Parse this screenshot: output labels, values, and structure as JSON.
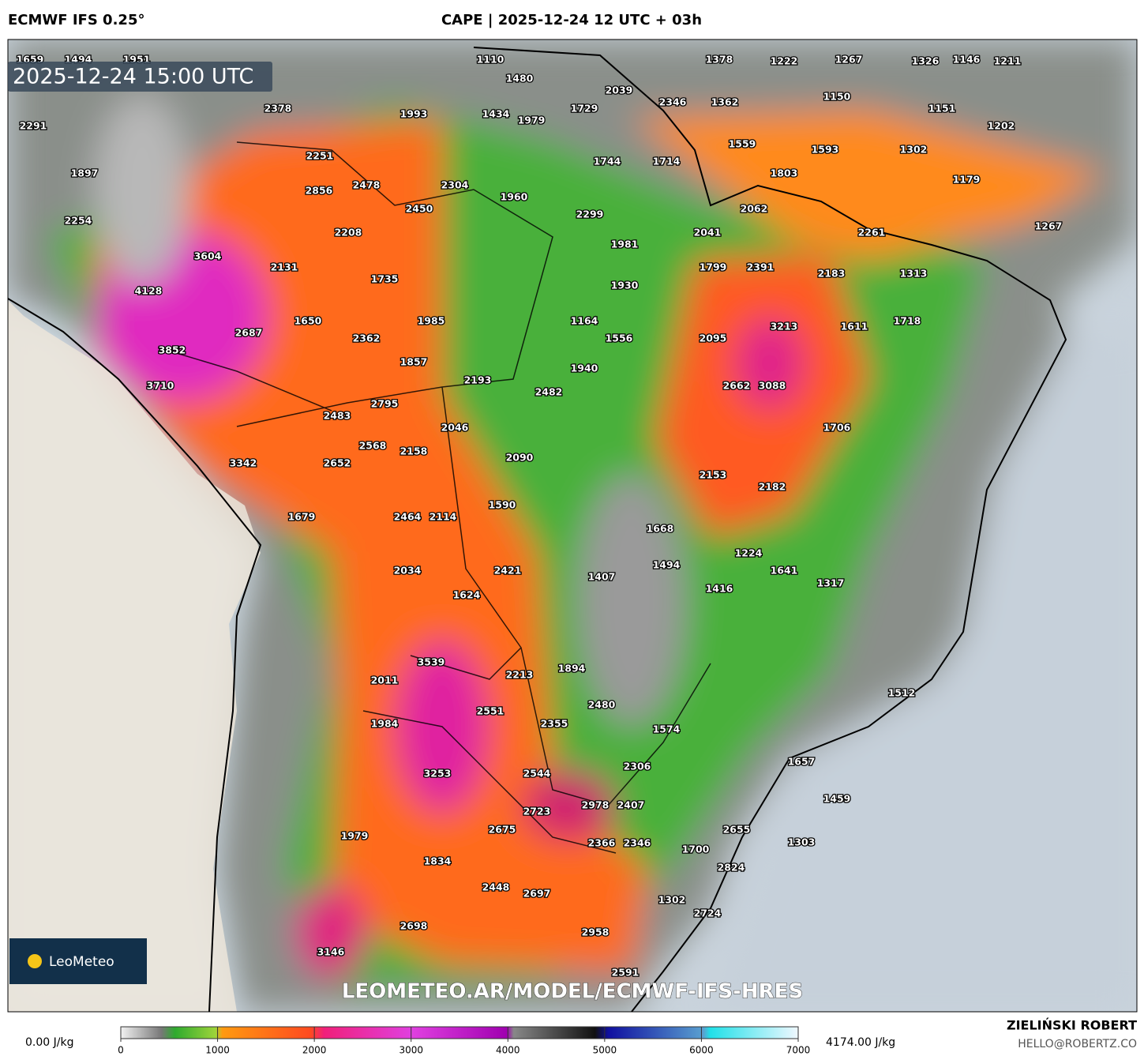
{
  "header": {
    "model": "ECMWF IFS 0.25°",
    "title": "CAPE | 2025-12-24 12 UTC + 03h"
  },
  "map": {
    "valid_time": "2025-12-24 15:00 UTC",
    "watermark": "LEOMETEO.AR/MODEL/ECMWF-IFS-HRES",
    "logo": "LeoMeteo",
    "labels": [
      1659,
      1494,
      1951,
      1110,
      1378,
      1222,
      1267,
      1326,
      1146,
      1211,
      1480,
      2039,
      2378,
      1993,
      1434,
      1979,
      1729,
      2346,
      1362,
      1150,
      1151,
      2291,
      1202,
      1559,
      1593,
      1302,
      2251,
      1744,
      1714,
      1803,
      1897,
      1179,
      2856,
      2478,
      2304,
      1960,
      2450,
      2062,
      2299,
      2254,
      2208,
      2041,
      2261,
      1267,
      1981,
      3604,
      2131,
      1799,
      2391,
      2183,
      1313,
      1735,
      1930,
      4128,
      1650,
      1985,
      1164,
      3213,
      1611,
      1718,
      2687,
      2362,
      1556,
      2095,
      3852,
      1857,
      1940,
      3710,
      2193,
      2482,
      2662,
      3088,
      2795,
      2483,
      2046,
      1706,
      2568,
      2158,
      2090,
      3342,
      2652,
      2153,
      2182,
      1590,
      1679,
      2464,
      2114,
      1668,
      1224,
      2034,
      2421,
      1494,
      1641,
      1407,
      1317,
      1416,
      1624,
      1894,
      3539,
      2213,
      2011,
      1512,
      2480,
      2551,
      1984,
      2355,
      1574,
      1657,
      2306,
      3253,
      2544,
      1459,
      2978,
      2407,
      2723,
      2675,
      2655,
      1979,
      1303,
      2366,
      2346,
      1700,
      1834,
      2824,
      2448,
      2697,
      1302,
      2724,
      2698,
      2958,
      3146,
      2591
    ]
  },
  "legend": {
    "min_label": "0.00 J/kg",
    "max_label": "4174.00 J/kg",
    "range": [
      0,
      7000
    ],
    "ticks": [
      0,
      1000,
      2000,
      3000,
      4000,
      5000,
      6000,
      7000
    ]
  },
  "footer": {
    "author": "ZIELIŃSKI ROBERT",
    "contact": "HELLO@ROBERTZ.CO"
  }
}
